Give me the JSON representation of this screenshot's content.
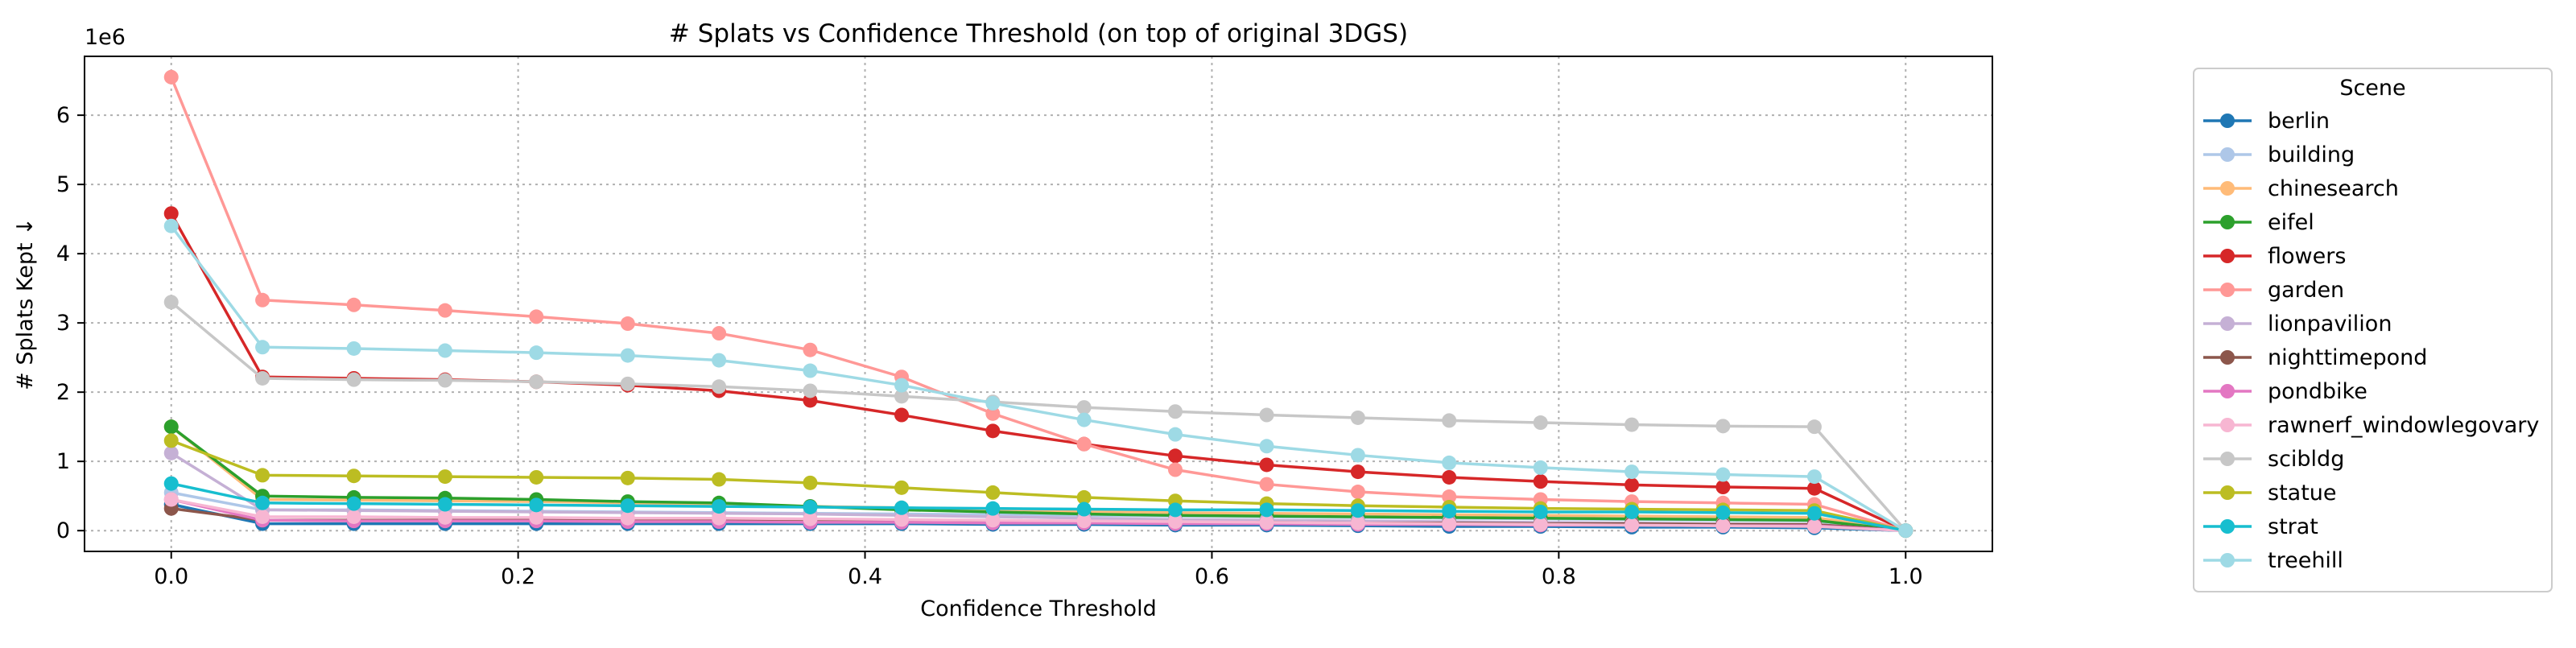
{
  "chart_data": {
    "type": "line",
    "title": "# Splats vs Confidence Threshold (on top of original 3DGS)",
    "xlabel": "Confidence Threshold",
    "ylabel": "# Splats Kept ↓",
    "y_offset_label": "1e6",
    "xlim": [
      -0.05,
      1.05
    ],
    "ylim": [
      -0.3,
      6.85
    ],
    "grid": true,
    "x_ticks": [
      0.0,
      0.2,
      0.4,
      0.6,
      0.8,
      1.0
    ],
    "x_tick_labels": [
      "0.0",
      "0.2",
      "0.4",
      "0.6",
      "0.8",
      "1.0"
    ],
    "y_ticks": [
      0,
      1,
      2,
      3,
      4,
      5,
      6
    ],
    "y_tick_labels": [
      "0",
      "1",
      "2",
      "3",
      "4",
      "5",
      "6"
    ],
    "x": [
      0.0,
      0.0526,
      0.1053,
      0.1579,
      0.2105,
      0.2632,
      0.3158,
      0.3684,
      0.4211,
      0.4737,
      0.5263,
      0.5789,
      0.6316,
      0.6842,
      0.7368,
      0.7895,
      0.8421,
      0.8947,
      0.9474,
      1.0
    ],
    "legend_title": "Scene",
    "legend_position": "outside-right",
    "series": [
      {
        "name": "berlin",
        "color": "#1f77b4",
        "values": [
          0.38,
          0.1,
          0.1,
          0.1,
          0.1,
          0.1,
          0.1,
          0.1,
          0.1,
          0.09,
          0.09,
          0.08,
          0.08,
          0.07,
          0.06,
          0.06,
          0.05,
          0.05,
          0.04,
          0.0
        ]
      },
      {
        "name": "building",
        "color": "#aec7e8",
        "values": [
          0.55,
          0.3,
          0.3,
          0.29,
          0.28,
          0.27,
          0.26,
          0.25,
          0.24,
          0.23,
          0.22,
          0.21,
          0.2,
          0.19,
          0.18,
          0.17,
          0.16,
          0.15,
          0.14,
          0.0
        ]
      },
      {
        "name": "chinesearch",
        "color": "#ffbb78",
        "values": [
          1.5,
          0.45,
          0.44,
          0.43,
          0.42,
          0.4,
          0.38,
          0.35,
          0.33,
          0.3,
          0.28,
          0.26,
          0.25,
          0.24,
          0.23,
          0.22,
          0.21,
          0.2,
          0.19,
          0.0
        ]
      },
      {
        "name": "eifel",
        "color": "#2ca02c",
        "values": [
          1.5,
          0.5,
          0.48,
          0.47,
          0.45,
          0.42,
          0.4,
          0.35,
          0.3,
          0.27,
          0.24,
          0.22,
          0.21,
          0.2,
          0.19,
          0.18,
          0.17,
          0.16,
          0.15,
          0.0
        ]
      },
      {
        "name": "flowers",
        "color": "#d62728",
        "values": [
          4.58,
          2.22,
          2.2,
          2.18,
          2.15,
          2.1,
          2.02,
          1.88,
          1.67,
          1.44,
          1.25,
          1.08,
          0.95,
          0.85,
          0.77,
          0.71,
          0.66,
          0.63,
          0.61,
          0.0
        ]
      },
      {
        "name": "garden",
        "color": "#ff9896",
        "values": [
          6.55,
          3.33,
          3.26,
          3.18,
          3.09,
          2.99,
          2.85,
          2.61,
          2.22,
          1.69,
          1.25,
          0.88,
          0.67,
          0.56,
          0.49,
          0.45,
          0.42,
          0.4,
          0.38,
          0.0
        ]
      },
      {
        "name": "lionpavilion",
        "color": "#c5b0d5",
        "values": [
          1.12,
          0.3,
          0.29,
          0.28,
          0.27,
          0.26,
          0.25,
          0.24,
          0.22,
          0.2,
          0.18,
          0.16,
          0.15,
          0.14,
          0.13,
          0.12,
          0.11,
          0.1,
          0.09,
          0.0
        ]
      },
      {
        "name": "nighttimepond",
        "color": "#8c564b",
        "values": [
          0.32,
          0.15,
          0.15,
          0.15,
          0.15,
          0.15,
          0.14,
          0.14,
          0.14,
          0.13,
          0.13,
          0.12,
          0.12,
          0.11,
          0.11,
          0.1,
          0.1,
          0.09,
          0.09,
          0.0
        ]
      },
      {
        "name": "pondbike",
        "color": "#e377c2",
        "values": [
          0.45,
          0.15,
          0.14,
          0.14,
          0.14,
          0.13,
          0.13,
          0.12,
          0.12,
          0.11,
          0.11,
          0.1,
          0.1,
          0.09,
          0.09,
          0.08,
          0.08,
          0.07,
          0.07,
          0.0
        ]
      },
      {
        "name": "rawnerf_windowlegovary",
        "color": "#f7b6d2",
        "values": [
          0.45,
          0.2,
          0.2,
          0.19,
          0.19,
          0.18,
          0.18,
          0.17,
          0.16,
          0.15,
          0.14,
          0.13,
          0.12,
          0.11,
          0.1,
          0.09,
          0.08,
          0.07,
          0.06,
          0.0
        ]
      },
      {
        "name": "scibldg",
        "color": "#c7c7c7",
        "values": [
          3.3,
          2.2,
          2.18,
          2.17,
          2.15,
          2.12,
          2.08,
          2.02,
          1.94,
          1.86,
          1.78,
          1.72,
          1.67,
          1.63,
          1.59,
          1.56,
          1.53,
          1.51,
          1.5,
          0.0
        ]
      },
      {
        "name": "statue",
        "color": "#bcbd22",
        "values": [
          1.3,
          0.8,
          0.79,
          0.78,
          0.77,
          0.76,
          0.74,
          0.69,
          0.62,
          0.55,
          0.48,
          0.43,
          0.39,
          0.36,
          0.34,
          0.32,
          0.31,
          0.3,
          0.29,
          0.0
        ]
      },
      {
        "name": "strat",
        "color": "#17becf",
        "values": [
          0.68,
          0.4,
          0.39,
          0.38,
          0.37,
          0.36,
          0.35,
          0.34,
          0.33,
          0.32,
          0.31,
          0.3,
          0.3,
          0.29,
          0.28,
          0.27,
          0.27,
          0.26,
          0.25,
          0.0
        ]
      },
      {
        "name": "treehill",
        "color": "#9edae5",
        "values": [
          4.4,
          2.65,
          2.63,
          2.6,
          2.57,
          2.53,
          2.46,
          2.31,
          2.1,
          1.84,
          1.6,
          1.39,
          1.22,
          1.09,
          0.98,
          0.91,
          0.85,
          0.81,
          0.78,
          0.0
        ]
      }
    ]
  }
}
